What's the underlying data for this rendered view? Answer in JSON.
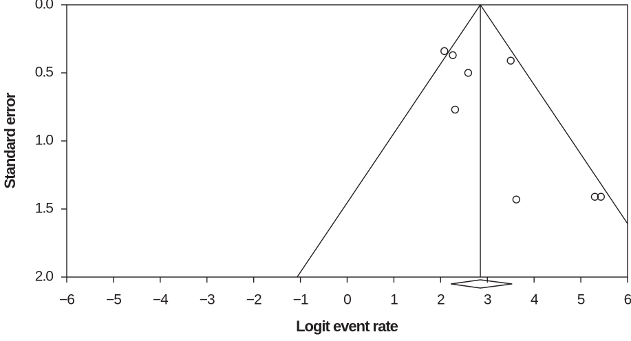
{
  "chart_data": {
    "type": "funnel",
    "xlabel": "Logit event rate",
    "ylabel": "Standard error",
    "x": [
      2.08,
      2.26,
      2.59,
      3.5,
      2.31,
      3.62,
      5.3,
      5.43
    ],
    "values": [
      0.34,
      0.37,
      0.5,
      0.41,
      0.77,
      1.43,
      1.41,
      1.41
    ],
    "pooled_estimate": 2.85,
    "ci_lower": 2.22,
    "ci_upper": 3.53,
    "funnel_z": 1.96,
    "xlim": [
      -6,
      6
    ],
    "ylim": [
      0,
      2
    ],
    "y_inverted": true,
    "xticks": [
      {
        "value": -6,
        "label": "−6"
      },
      {
        "value": -5,
        "label": "−5"
      },
      {
        "value": -4,
        "label": "−4"
      },
      {
        "value": -3,
        "label": "−3"
      },
      {
        "value": -2,
        "label": "−2"
      },
      {
        "value": -1,
        "label": "−1"
      },
      0,
      1,
      2,
      3,
      4,
      5,
      6
    ],
    "yticks": [
      {
        "value": 0,
        "label": "0.0"
      },
      {
        "value": 0.5,
        "label": "0.5"
      },
      {
        "value": 1,
        "label": "1.0"
      },
      {
        "value": 1.5,
        "label": "1.5"
      },
      {
        "value": 2,
        "label": "2.0"
      }
    ]
  }
}
